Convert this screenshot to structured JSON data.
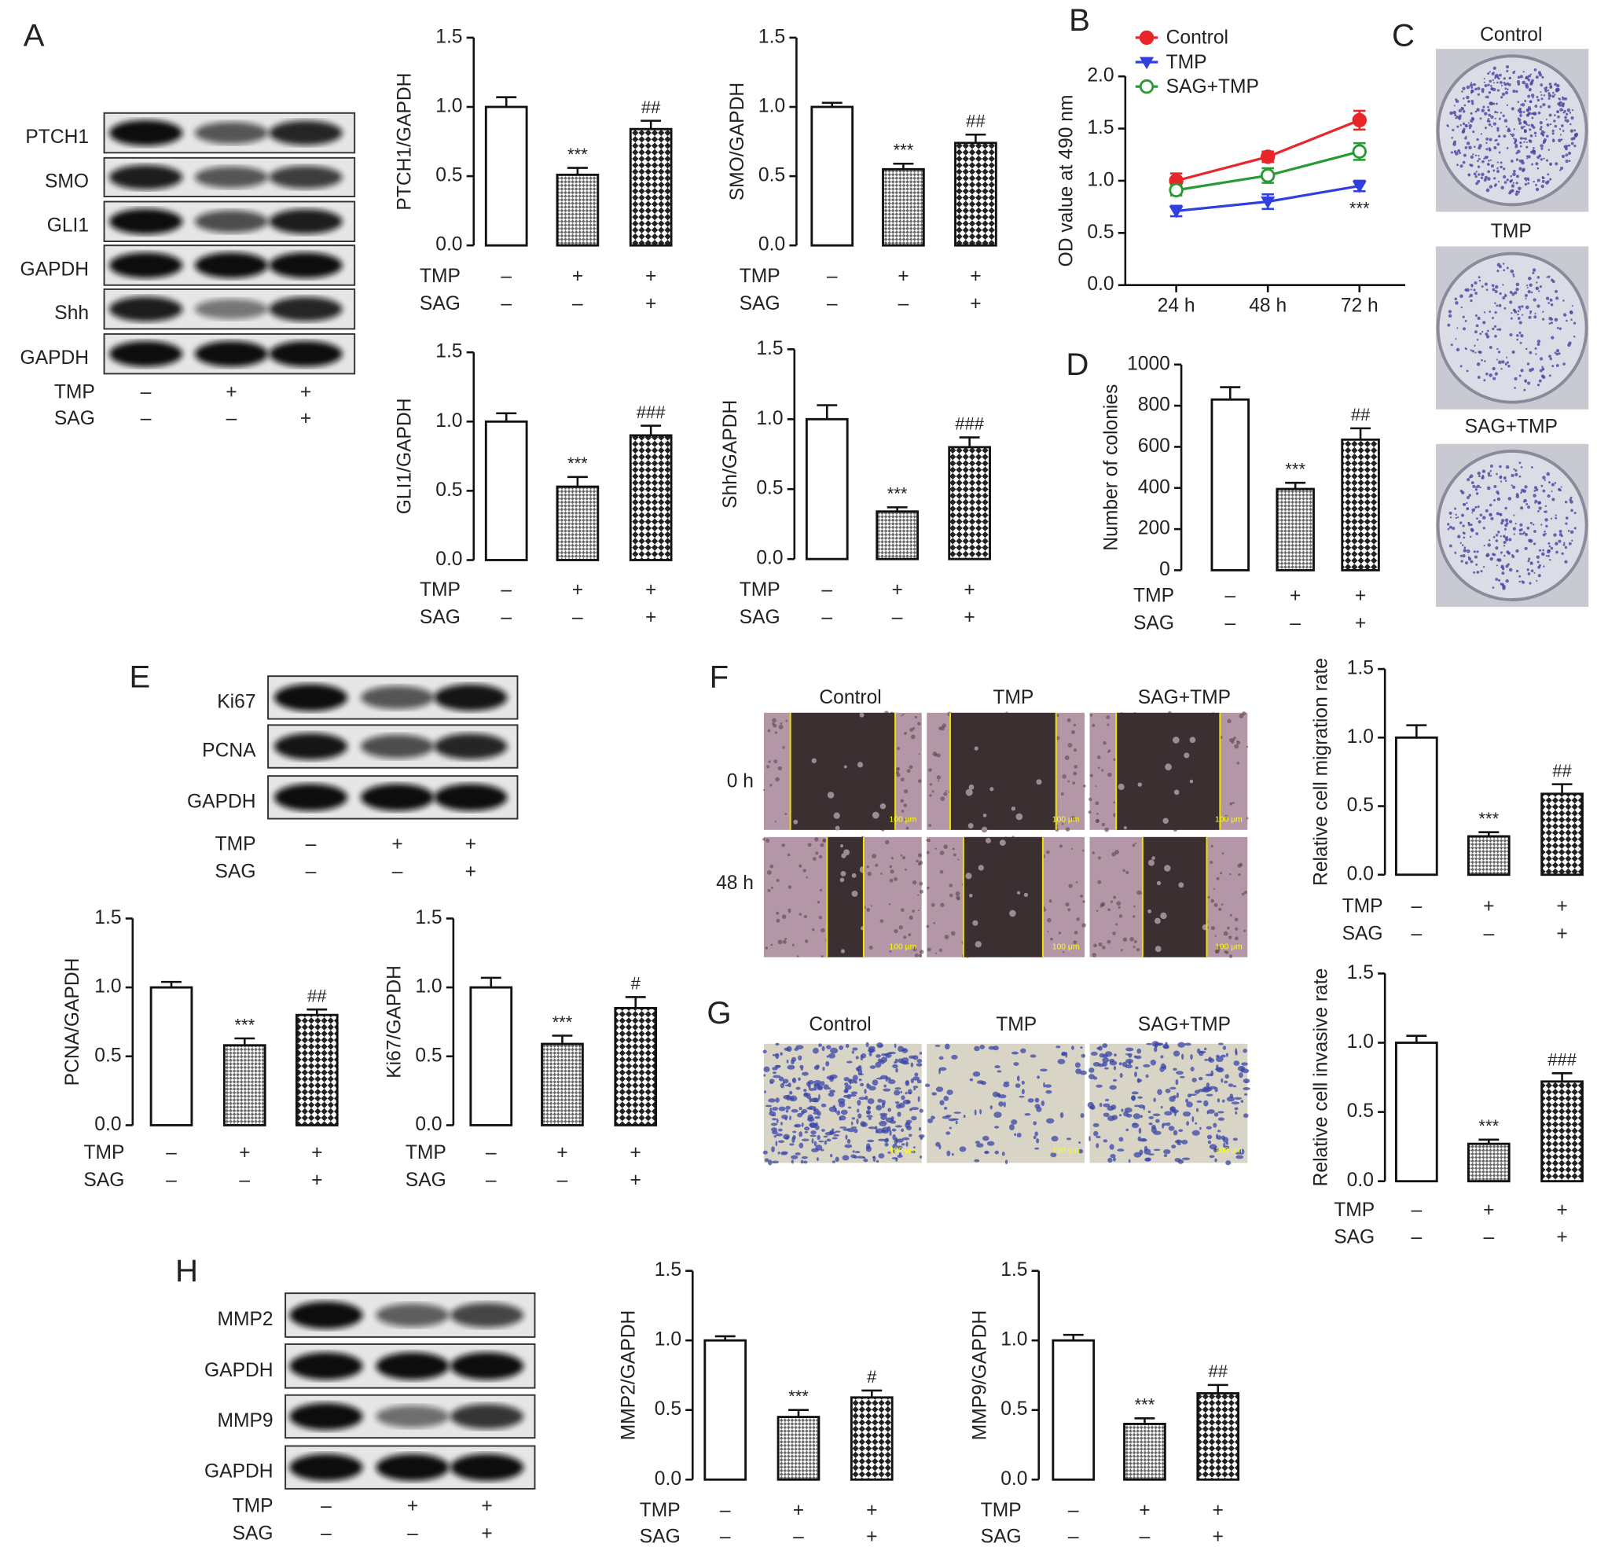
{
  "panels": [
    "A",
    "B",
    "C",
    "D",
    "E",
    "F",
    "G",
    "H"
  ],
  "conditions": [
    {
      "name": "TMP",
      "marks": [
        "–",
        "+",
        "+"
      ]
    },
    {
      "name": "SAG",
      "marks": [
        "–",
        "–",
        "+"
      ]
    }
  ],
  "blots": {
    "A": [
      "PTCH1",
      "SMO",
      "GLI1",
      "GAPDH",
      "Shh",
      "GAPDH"
    ],
    "E": [
      "Ki67",
      "PCNA",
      "GAPDH"
    ],
    "H": [
      "MMP2",
      "GAPDH",
      "MMP9",
      "GAPDH"
    ]
  },
  "colony": {
    "groups": [
      "Control",
      "TMP",
      "SAG+TMP"
    ]
  },
  "wound": {
    "groups": [
      "Control",
      "TMP",
      "SAG+TMP"
    ],
    "times": [
      "0 h",
      "48 h"
    ],
    "scale_bar": "100 μm"
  },
  "invasion": {
    "groups": [
      "Control",
      "TMP",
      "SAG+TMP"
    ],
    "scale_bar": "100 μm"
  },
  "chart_data": [
    {
      "type": "line",
      "ylabel": "OD value at 490 nm",
      "categories": [
        "24 h",
        "48 h",
        "72 h"
      ],
      "series": [
        {
          "name": "Control",
          "color": "#e8262a",
          "marker": "circle",
          "values": [
            1.0,
            1.23,
            1.58
          ],
          "errors": [
            0.07,
            0.05,
            0.09
          ]
        },
        {
          "name": "TMP",
          "color": "#2f3fe0",
          "marker": "triangle-down",
          "values": [
            0.71,
            0.8,
            0.95
          ],
          "errors": [
            0.05,
            0.07,
            0.05
          ]
        },
        {
          "name": "SAG+TMP",
          "color": "#2a9a35",
          "marker": "open-circle",
          "values": [
            0.91,
            1.05,
            1.28
          ],
          "errors": [
            0.05,
            0.07,
            0.08
          ]
        }
      ],
      "annotations": [
        {
          "series": 1,
          "index": 2,
          "text": "***"
        }
      ],
      "ylim": [
        0,
        2
      ],
      "yticks": [
        {
          "value": 0,
          "label": "0.0"
        },
        0.5,
        {
          "value": 1,
          "label": "1.0"
        },
        1.5,
        {
          "value": 2,
          "label": "2.0"
        }
      ],
      "legend": "top-left"
    },
    {
      "type": "bar",
      "ylabel": "PTCH1/GAPDH",
      "values": [
        1.0,
        0.51,
        0.84
      ],
      "errors": [
        0.07,
        0.05,
        0.06
      ],
      "annotations": [
        {
          "index": 1,
          "text": "***"
        },
        {
          "index": 2,
          "text": "##"
        }
      ],
      "ylim": [
        0,
        1.5
      ],
      "yticks": [
        {
          "value": 0,
          "label": "0.0"
        },
        0.5,
        {
          "value": 1,
          "label": "1.0"
        },
        1.5
      ]
    },
    {
      "type": "bar",
      "ylabel": "SMO/GAPDH",
      "values": [
        1.0,
        0.55,
        0.74
      ],
      "errors": [
        0.03,
        0.04,
        0.06
      ],
      "annotations": [
        {
          "index": 1,
          "text": "***"
        },
        {
          "index": 2,
          "text": "##"
        }
      ],
      "ylim": [
        0,
        1.5
      ],
      "yticks": [
        {
          "value": 0,
          "label": "0.0"
        },
        0.5,
        {
          "value": 1,
          "label": "1.0"
        },
        1.5
      ]
    },
    {
      "type": "bar",
      "ylabel": "GLI1/GAPDH",
      "values": [
        1.0,
        0.53,
        0.9
      ],
      "errors": [
        0.06,
        0.07,
        0.07
      ],
      "annotations": [
        {
          "index": 1,
          "text": "***"
        },
        {
          "index": 2,
          "text": "###"
        }
      ],
      "ylim": [
        0,
        1.5
      ],
      "yticks": [
        {
          "value": 0,
          "label": "0.0"
        },
        0.5,
        {
          "value": 1,
          "label": "1.0"
        },
        1.5
      ]
    },
    {
      "type": "bar",
      "ylabel": "Shh/GAPDH",
      "values": [
        1.0,
        0.34,
        0.8
      ],
      "errors": [
        0.1,
        0.03,
        0.07
      ],
      "annotations": [
        {
          "index": 1,
          "text": "***"
        },
        {
          "index": 2,
          "text": "###"
        }
      ],
      "ylim": [
        0,
        1.5
      ],
      "yticks": [
        {
          "value": 0,
          "label": "0.0"
        },
        0.5,
        {
          "value": 1,
          "label": "1.0"
        },
        1.5
      ]
    },
    {
      "type": "bar",
      "ylabel": "Number of colonies",
      "values": [
        830,
        395,
        635
      ],
      "errors": [
        60,
        30,
        55
      ],
      "annotations": [
        {
          "index": 1,
          "text": "***"
        },
        {
          "index": 2,
          "text": "##"
        }
      ],
      "ylim": [
        0,
        1000
      ],
      "yticks": [
        0,
        200,
        400,
        600,
        800,
        1000
      ]
    },
    {
      "type": "bar",
      "ylabel": "PCNA/GAPDH",
      "values": [
        1.0,
        0.58,
        0.8
      ],
      "errors": [
        0.04,
        0.05,
        0.04
      ],
      "annotations": [
        {
          "index": 1,
          "text": "***"
        },
        {
          "index": 2,
          "text": "##"
        }
      ],
      "ylim": [
        0,
        1.5
      ],
      "yticks": [
        {
          "value": 0,
          "label": "0.0"
        },
        0.5,
        {
          "value": 1,
          "label": "1.0"
        },
        1.5
      ]
    },
    {
      "type": "bar",
      "ylabel": "Ki67/GAPDH",
      "values": [
        1.0,
        0.59,
        0.85
      ],
      "errors": [
        0.07,
        0.06,
        0.08
      ],
      "annotations": [
        {
          "index": 1,
          "text": "***"
        },
        {
          "index": 2,
          "text": "#"
        }
      ],
      "ylim": [
        0,
        1.5
      ],
      "yticks": [
        {
          "value": 0,
          "label": "0.0"
        },
        0.5,
        {
          "value": 1,
          "label": "1.0"
        },
        1.5
      ]
    },
    {
      "type": "bar",
      "ylabel": "Relative cell migration rate",
      "values": [
        1.0,
        0.28,
        0.59
      ],
      "errors": [
        0.09,
        0.03,
        0.07
      ],
      "annotations": [
        {
          "index": 1,
          "text": "***"
        },
        {
          "index": 2,
          "text": "##"
        }
      ],
      "ylim": [
        0,
        1.5
      ],
      "yticks": [
        {
          "value": 0,
          "label": "0.0"
        },
        0.5,
        {
          "value": 1,
          "label": "1.0"
        },
        1.5
      ]
    },
    {
      "type": "bar",
      "ylabel": "Relative cell invasive rate",
      "values": [
        1.0,
        0.27,
        0.72
      ],
      "errors": [
        0.05,
        0.03,
        0.06
      ],
      "annotations": [
        {
          "index": 1,
          "text": "***"
        },
        {
          "index": 2,
          "text": "###"
        }
      ],
      "ylim": [
        0,
        1.5
      ],
      "yticks": [
        {
          "value": 0,
          "label": "0.0"
        },
        0.5,
        {
          "value": 1,
          "label": "1.0"
        },
        1.5
      ]
    },
    {
      "type": "bar",
      "ylabel": "MMP2/GAPDH",
      "values": [
        1.0,
        0.45,
        0.59
      ],
      "errors": [
        0.03,
        0.05,
        0.05
      ],
      "annotations": [
        {
          "index": 1,
          "text": "***"
        },
        {
          "index": 2,
          "text": "#"
        }
      ],
      "ylim": [
        0,
        1.5
      ],
      "yticks": [
        {
          "value": 0,
          "label": "0.0"
        },
        0.5,
        {
          "value": 1,
          "label": "1.0"
        },
        1.5
      ]
    },
    {
      "type": "bar",
      "ylabel": "MMP9/GAPDH",
      "values": [
        1.0,
        0.4,
        0.62
      ],
      "errors": [
        0.04,
        0.04,
        0.06
      ],
      "annotations": [
        {
          "index": 1,
          "text": "***"
        },
        {
          "index": 2,
          "text": "##"
        }
      ],
      "ylim": [
        0,
        1.5
      ],
      "yticks": [
        {
          "value": 0,
          "label": "0.0"
        },
        0.5,
        {
          "value": 1,
          "label": "1.0"
        },
        1.5
      ]
    }
  ]
}
